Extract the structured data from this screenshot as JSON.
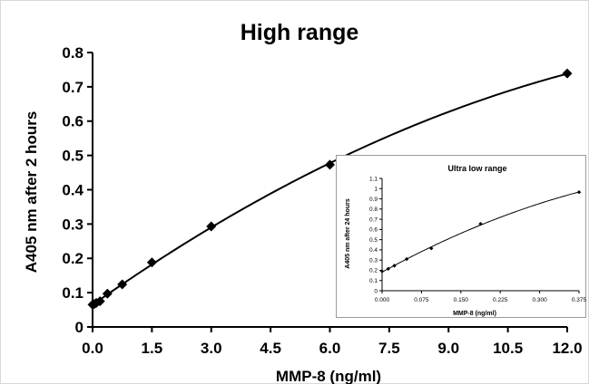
{
  "chart_data": [
    {
      "type": "scatter",
      "title": "High range",
      "xlabel": "MMP-8 (ng/ml)",
      "ylabel": "A405 nm after 2 hours",
      "xlim": [
        0,
        12
      ],
      "ylim": [
        0,
        0.8
      ],
      "xticks": [
        "0.0",
        "1.5",
        "3.0",
        "4.5",
        "6.0",
        "7.5",
        "9.0",
        "10.5",
        "12.0"
      ],
      "yticks": [
        "0",
        "0.1",
        "0.2",
        "0.3",
        "0.4",
        "0.5",
        "0.6",
        "0.7",
        "0.8"
      ],
      "marker": "diamond",
      "trendline": "polynomial",
      "grid": false,
      "x": [
        0.0,
        0.047,
        0.094,
        0.1875,
        0.375,
        0.75,
        1.5,
        3.0,
        6.0,
        12.0
      ],
      "y": [
        0.065,
        0.067,
        0.07,
        0.075,
        0.097,
        0.124,
        0.188,
        0.293,
        0.473,
        0.739
      ]
    },
    {
      "type": "scatter",
      "title": "Ultra low range",
      "xlabel": "MMP-8 (ng/ml)",
      "ylabel": "A405 nm after 24 hours",
      "xlim": [
        0,
        0.375
      ],
      "ylim": [
        0,
        1.1
      ],
      "xticks": [
        "0.000",
        "0.075",
        "0.150",
        "0.225",
        "0.300",
        "0.375"
      ],
      "yticks": [
        "0",
        "0.1",
        "0.2",
        "0.3",
        "0.4",
        "0.5",
        "0.6",
        "0.7",
        "0.8",
        "0.9",
        "1",
        "1.1"
      ],
      "marker": "diamond",
      "trendline": "polynomial",
      "grid": false,
      "x": [
        0.0,
        0.0117,
        0.0234,
        0.0469,
        0.0938,
        0.1875,
        0.375
      ],
      "y": [
        0.19,
        0.215,
        0.245,
        0.31,
        0.415,
        0.655,
        0.965
      ]
    }
  ]
}
